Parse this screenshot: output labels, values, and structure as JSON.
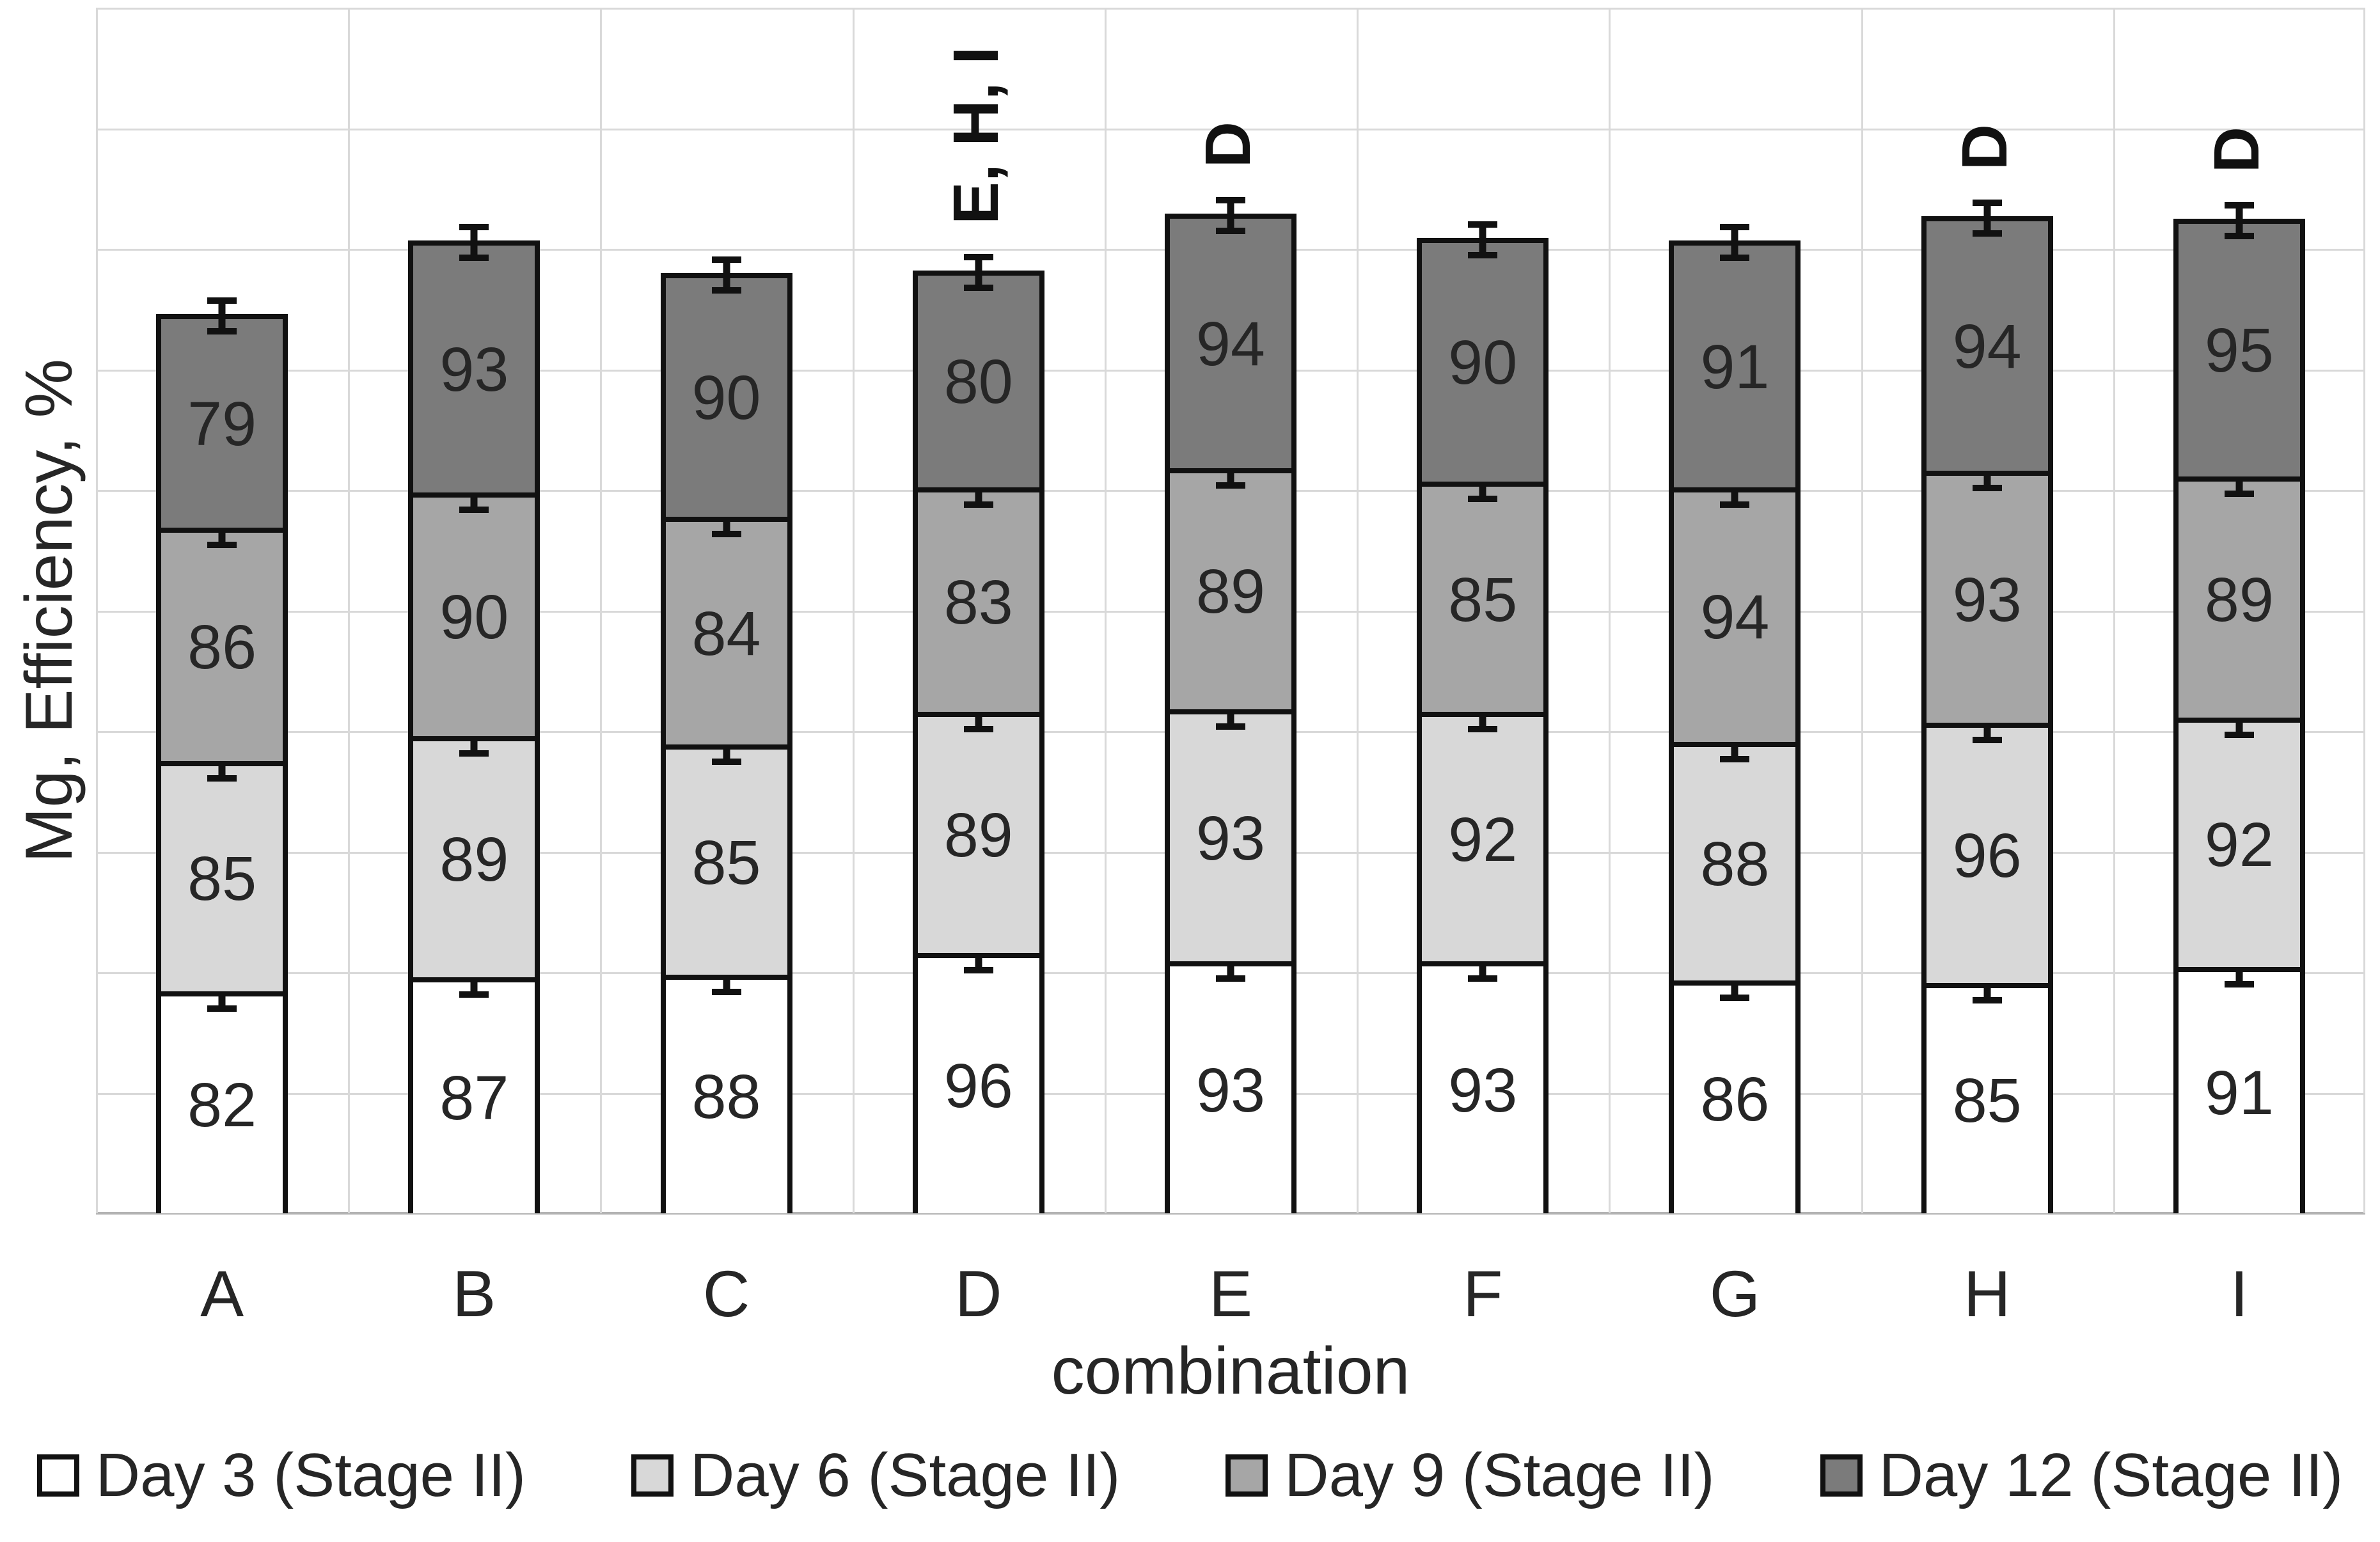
{
  "chart_data": {
    "type": "bar",
    "stacked": true,
    "title": "",
    "xlabel": "combination",
    "ylabel": "Mg, Efficiency, %",
    "categories": [
      "A",
      "B",
      "C",
      "D",
      "E",
      "F",
      "G",
      "H",
      "I"
    ],
    "series": [
      {
        "name": "Day 3 (Stage II)",
        "color": "#ffffff",
        "values": [
          82,
          87,
          88,
          96,
          93,
          93,
          86,
          85,
          91
        ]
      },
      {
        "name": "Day 6 (Stage II)",
        "color": "#d8d8d8",
        "values": [
          85,
          89,
          85,
          89,
          93,
          92,
          88,
          96,
          92
        ]
      },
      {
        "name": "Day 9 (Stage II)",
        "color": "#a6a6a6",
        "values": [
          86,
          90,
          84,
          83,
          89,
          85,
          94,
          93,
          89
        ]
      },
      {
        "name": "Day 12 (Stage II)",
        "color": "#7b7b7b",
        "values": [
          79,
          93,
          90,
          80,
          94,
          90,
          91,
          94,
          95
        ]
      }
    ],
    "stack_totals": [
      332,
      359,
      347,
      348,
      369,
      360,
      359,
      368,
      367
    ],
    "annotations": [
      {
        "category": "D",
        "text": "E, H, I"
      },
      {
        "category": "E",
        "text": "D"
      },
      {
        "category": "H",
        "text": "D"
      },
      {
        "category": "I",
        "text": "D"
      }
    ],
    "error_bars": true,
    "value_labels": true,
    "y_axis": {
      "min": 0,
      "max": 445,
      "tick_labels_visible": false,
      "gridlines": true,
      "gridline_divisions": 10
    },
    "x_axis": {
      "gridlines": true
    },
    "legend_position": "bottom",
    "style": {
      "bar_border_color": "#111111",
      "gridline_color": "#d9d9d9",
      "axis_line_color": "#b3b3b3",
      "text_color": "#262626"
    }
  }
}
